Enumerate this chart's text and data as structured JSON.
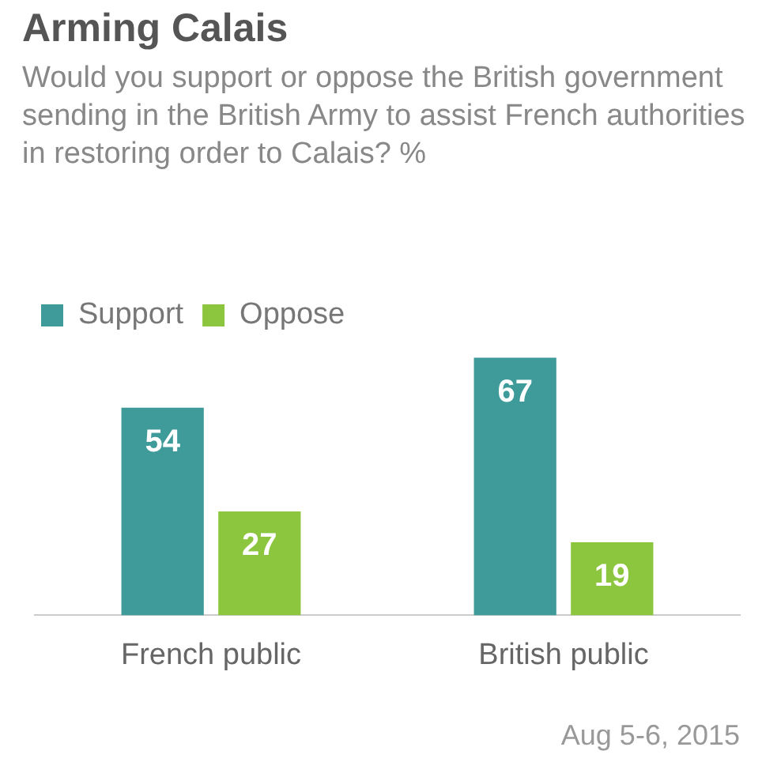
{
  "chart_data": {
    "type": "bar",
    "title": "Arming Calais",
    "subtitle": "Would you support or oppose the British government sending in the British Army to assist French authorities in restoring order to Calais? %",
    "categories": [
      "French public",
      "British public"
    ],
    "series": [
      {
        "name": "Support",
        "color": "#3f9a9a",
        "values": [
          54,
          67
        ]
      },
      {
        "name": "Oppose",
        "color": "#8cc63e",
        "values": [
          27,
          19
        ]
      }
    ],
    "relative": false,
    "data_labels": true,
    "legend": "top left",
    "grid": false,
    "annotations": [
      "Aug 5-6, 2015"
    ]
  }
}
